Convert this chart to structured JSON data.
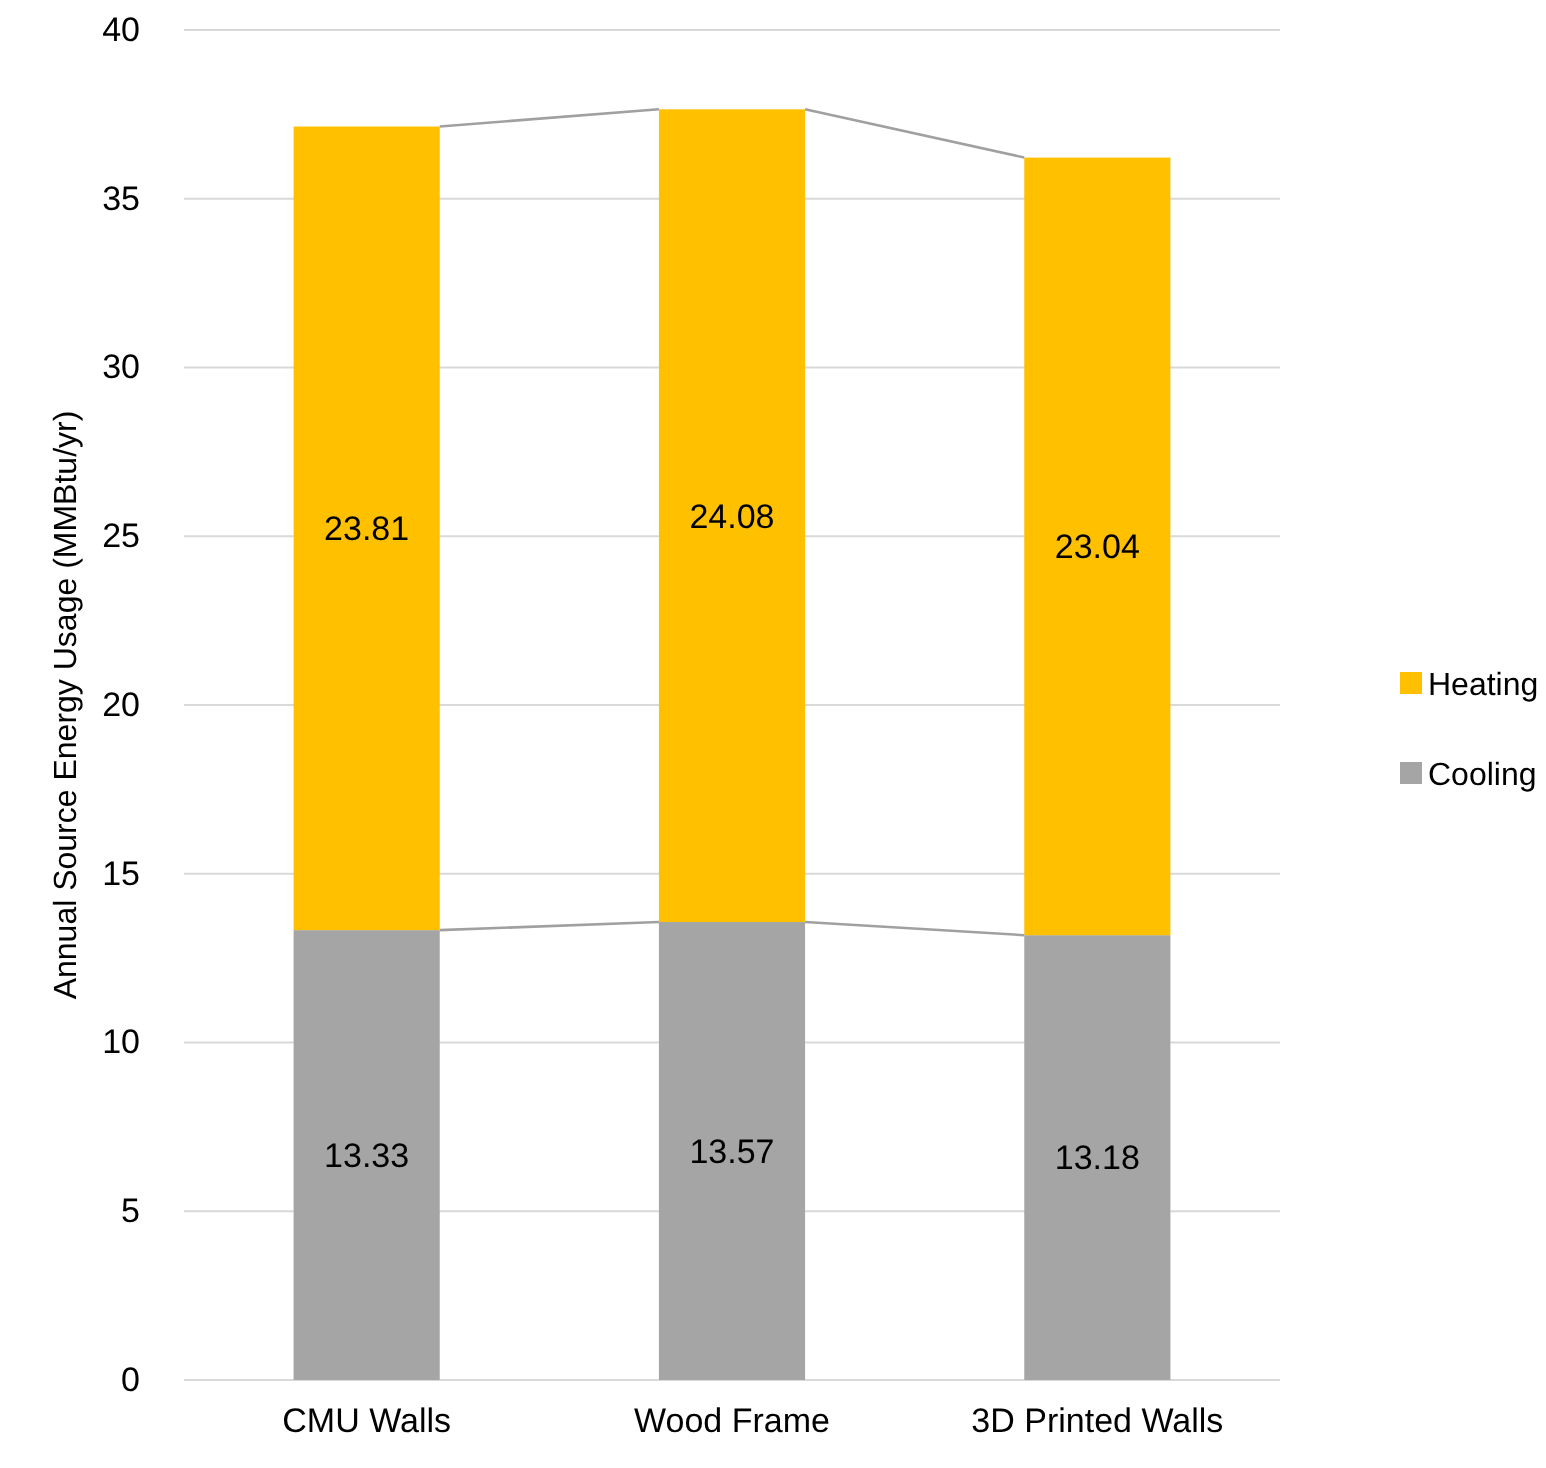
{
  "chart_data": {
    "type": "bar",
    "stacked": true,
    "ylabel": "Annual Source Energy Usage (MMBtu/yr)",
    "categories": [
      "CMU Walls",
      "Wood Frame",
      "3D Printed Walls"
    ],
    "series": [
      {
        "name": "Cooling",
        "color": "#a5a5a5",
        "values": [
          13.33,
          13.57,
          13.18
        ]
      },
      {
        "name": "Heating",
        "color": "#ffc000",
        "values": [
          23.81,
          24.08,
          23.04
        ]
      }
    ],
    "ylim": [
      0,
      40
    ],
    "yticks": [
      0,
      5,
      10,
      15,
      20,
      25,
      30,
      35,
      40
    ],
    "grid": "y",
    "legend": "right",
    "data_labels": true
  }
}
